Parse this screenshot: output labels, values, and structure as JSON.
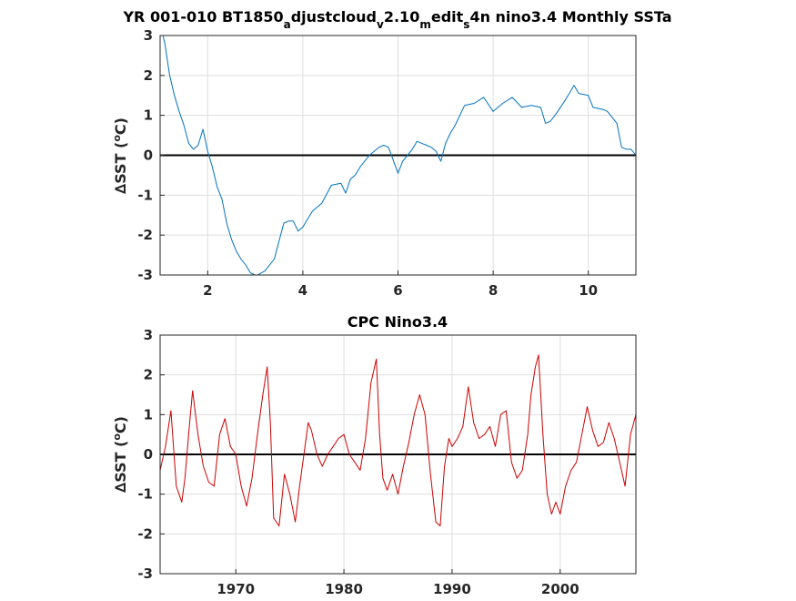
{
  "figure_title": "YR 001-010 BT1850_adjustcloud_v2.10_medit_s4n nino3.4 Monthly SSTa",
  "title_parts": {
    "p1": "YR 001-010 BT1850",
    "s1": "a",
    "p2": "djustcloud",
    "s2": "v",
    "p3": "2.10",
    "s3": "m",
    "p4": "edit",
    "s4": "s",
    "p5": "4n nino3.4 Monthly SSTa"
  },
  "chart_data": [
    {
      "type": "line",
      "title": "YR 001-010 BT1850_adjustcloud_v2.10_medit_s4n nino3.4 Monthly SSTa",
      "ylabel_prefix": "∆SST (",
      "ylabel_sup": "o",
      "ylabel_suffix": "C)",
      "xlim": [
        1,
        11
      ],
      "ylim": [
        -3,
        3
      ],
      "xticks": [
        2,
        4,
        6,
        8,
        10
      ],
      "xtick_labels": [
        "2",
        "4",
        "6",
        "8",
        "10"
      ],
      "yticks": [
        -3,
        -2,
        -1,
        0,
        1,
        2,
        3
      ],
      "ytick_labels": [
        "-3",
        "-2",
        "-1",
        "0",
        "1",
        "2",
        "3"
      ],
      "grid": true,
      "zero_line": true,
      "line_color": "#0072bd",
      "x": [
        1.0,
        1.1,
        1.2,
        1.3,
        1.4,
        1.5,
        1.6,
        1.7,
        1.8,
        1.9,
        2.0,
        2.1,
        2.2,
        2.3,
        2.4,
        2.5,
        2.6,
        2.7,
        2.8,
        2.9,
        3.0,
        3.05,
        3.2,
        3.4,
        3.6,
        3.7,
        3.8,
        3.9,
        4.0,
        4.1,
        4.2,
        4.4,
        4.6,
        4.8,
        4.9,
        5.0,
        5.1,
        5.2,
        5.4,
        5.6,
        5.7,
        5.8,
        6.0,
        6.1,
        6.2,
        6.3,
        6.4,
        6.5,
        6.6,
        6.7,
        6.8,
        6.9,
        7.0,
        7.1,
        7.2,
        7.4,
        7.6,
        7.8,
        8.0,
        8.1,
        8.2,
        8.4,
        8.6,
        8.8,
        9.0,
        9.1,
        9.2,
        9.3,
        9.5,
        9.6,
        9.7,
        9.8,
        10.0,
        10.1,
        10.3,
        10.4,
        10.6,
        10.7,
        10.8,
        10.9,
        11.0
      ],
      "y": [
        3.3,
        2.8,
        2.0,
        1.5,
        1.1,
        0.75,
        0.3,
        0.15,
        0.25,
        0.65,
        0.1,
        -0.3,
        -0.8,
        -1.1,
        -1.7,
        -2.1,
        -2.4,
        -2.6,
        -2.75,
        -2.95,
        -3.0,
        -3.0,
        -2.9,
        -2.6,
        -1.7,
        -1.65,
        -1.65,
        -1.9,
        -1.8,
        -1.6,
        -1.4,
        -1.2,
        -0.75,
        -0.7,
        -0.95,
        -0.6,
        -0.5,
        -0.3,
        0.0,
        0.2,
        0.25,
        0.2,
        -0.45,
        -0.15,
        0.0,
        0.15,
        0.35,
        0.3,
        0.25,
        0.2,
        0.1,
        -0.15,
        0.3,
        0.55,
        0.75,
        1.25,
        1.3,
        1.45,
        1.1,
        1.2,
        1.3,
        1.45,
        1.2,
        1.25,
        1.2,
        0.8,
        0.85,
        1.0,
        1.35,
        1.55,
        1.75,
        1.55,
        1.5,
        1.2,
        1.15,
        1.1,
        0.8,
        0.2,
        0.15,
        0.15,
        0.0
      ]
    },
    {
      "type": "line",
      "title": "CPC Nino3.4",
      "ylabel_prefix": "∆SST (",
      "ylabel_sup": "o",
      "ylabel_suffix": "C)",
      "xlim": [
        1963,
        2007
      ],
      "ylim": [
        -3,
        3
      ],
      "xticks": [
        1970,
        1980,
        1990,
        2000
      ],
      "xtick_labels": [
        "1970",
        "1980",
        "1990",
        "2000"
      ],
      "yticks": [
        -3,
        -2,
        -1,
        0,
        1,
        2,
        3
      ],
      "ytick_labels": [
        "-3",
        "-2",
        "-1",
        "0",
        "1",
        "2",
        "3"
      ],
      "grid": true,
      "zero_line": true,
      "line_color": "#cc0000",
      "x": [
        1963.0,
        1963.5,
        1964.0,
        1964.5,
        1965.0,
        1965.3,
        1965.7,
        1966.0,
        1966.5,
        1967.0,
        1967.5,
        1968.0,
        1968.5,
        1969.0,
        1969.5,
        1970.0,
        1970.5,
        1971.0,
        1971.5,
        1972.0,
        1972.5,
        1972.9,
        1973.2,
        1973.5,
        1974.0,
        1974.5,
        1975.0,
        1975.5,
        1975.9,
        1976.3,
        1976.7,
        1977.0,
        1977.5,
        1978.0,
        1978.5,
        1979.0,
        1979.5,
        1980.0,
        1980.5,
        1981.0,
        1981.5,
        1982.0,
        1982.5,
        1983.0,
        1983.3,
        1983.6,
        1984.0,
        1984.5,
        1985.0,
        1985.5,
        1986.0,
        1986.5,
        1987.0,
        1987.5,
        1988.0,
        1988.5,
        1988.9,
        1989.3,
        1989.7,
        1990.0,
        1990.5,
        1991.0,
        1991.5,
        1992.0,
        1992.5,
        1993.0,
        1993.5,
        1994.0,
        1994.5,
        1995.0,
        1995.5,
        1996.0,
        1996.5,
        1997.0,
        1997.3,
        1997.7,
        1998.0,
        1998.4,
        1998.8,
        1999.2,
        1999.6,
        2000.0,
        2000.5,
        2001.0,
        2001.5,
        2002.0,
        2002.5,
        2003.0,
        2003.5,
        2004.0,
        2004.5,
        2005.0,
        2005.5,
        2006.0,
        2006.5,
        2007.0
      ],
      "y": [
        -0.4,
        0.2,
        1.1,
        -0.8,
        -1.2,
        -0.6,
        0.7,
        1.6,
        0.5,
        -0.3,
        -0.7,
        -0.8,
        0.5,
        0.9,
        0.2,
        0.0,
        -0.8,
        -1.3,
        -0.6,
        0.5,
        1.5,
        2.2,
        0.8,
        -1.6,
        -1.8,
        -0.5,
        -1.0,
        -1.7,
        -0.8,
        0.0,
        0.8,
        0.6,
        0.0,
        -0.3,
        0.0,
        0.2,
        0.4,
        0.5,
        0.0,
        -0.2,
        -0.4,
        0.4,
        1.8,
        2.4,
        0.5,
        -0.6,
        -0.9,
        -0.5,
        -1.0,
        -0.3,
        0.3,
        1.0,
        1.5,
        1.0,
        -0.5,
        -1.7,
        -1.8,
        -0.3,
        0.4,
        0.2,
        0.4,
        0.7,
        1.7,
        0.8,
        0.4,
        0.5,
        0.7,
        0.2,
        1.0,
        1.1,
        -0.2,
        -0.6,
        -0.4,
        0.5,
        1.5,
        2.2,
        2.5,
        0.5,
        -1.0,
        -1.5,
        -1.2,
        -1.5,
        -0.8,
        -0.4,
        -0.2,
        0.5,
        1.2,
        0.6,
        0.2,
        0.3,
        0.8,
        0.4,
        -0.2,
        -0.8,
        0.5,
        1.0
      ]
    }
  ]
}
